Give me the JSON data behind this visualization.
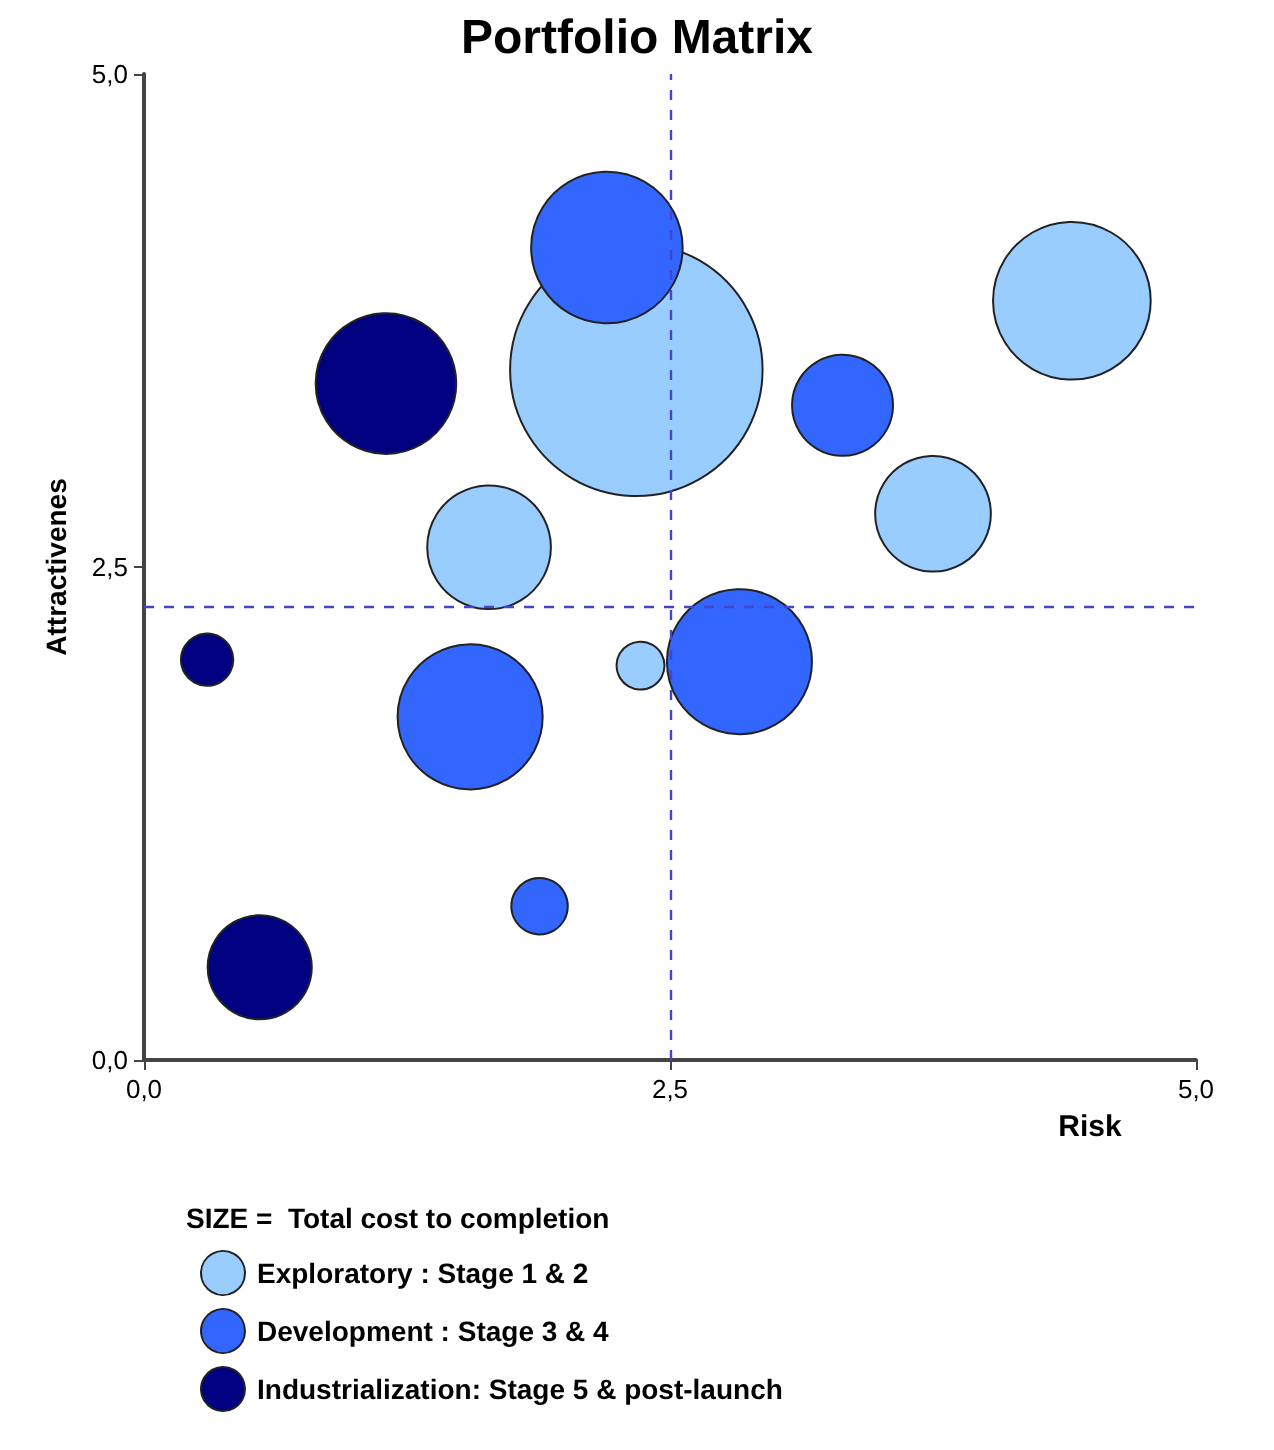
{
  "chart_data": {
    "type": "bubble",
    "title": "Portfolio Matrix",
    "xlabel": "Risk",
    "ylabel": "Attractivenes",
    "legend_title": "SIZE =  Total cost to completion",
    "xlim": [
      0,
      5
    ],
    "ylim": [
      0,
      5
    ],
    "xticks": [
      {
        "value": 0,
        "label": "0,0"
      },
      {
        "value": 2.5,
        "label": "2,5"
      },
      {
        "value": 5,
        "label": "5,0"
      }
    ],
    "yticks": [
      {
        "value": 0,
        "label": "0,0"
      },
      {
        "value": 2.5,
        "label": "2,5"
      },
      {
        "value": 5,
        "label": "5,0"
      }
    ],
    "grid": false,
    "legend": "bottom",
    "marker": "circle",
    "ref_lines": [
      {
        "axis": "y",
        "value": 2.3,
        "color": "#4444cc",
        "line_style": "dashed"
      },
      {
        "axis": "x",
        "value": 2.5,
        "color": "#4444cc",
        "line_style": "dashed"
      }
    ],
    "series": [
      {
        "name": "Exploratory : Stage 1 & 2",
        "color": "#99ccff",
        "x": [
          2.34,
          4.41,
          3.75,
          1.64,
          2.36
        ],
        "values": [
          3.5,
          3.85,
          2.77,
          2.6,
          2.0
        ],
        "sizes": [
          1,
          0.39,
          0.21,
          0.24,
          0.036
        ]
      },
      {
        "name": "Development : Stage 3 & 4",
        "color": "#3366ff",
        "x": [
          2.2,
          3.32,
          2.83,
          1.55,
          1.88
        ],
        "values": [
          4.12,
          3.32,
          2.02,
          1.74,
          0.78
        ],
        "sizes": [
          0.36,
          0.16,
          0.33,
          0.33,
          0.05
        ]
      },
      {
        "name": "Industrialization: Stage 5 & post-launch",
        "color": "#000080",
        "x": [
          1.15,
          0.3,
          0.55
        ],
        "values": [
          3.43,
          2.03,
          0.47
        ],
        "sizes": [
          0.31,
          0.043,
          0.17
        ]
      }
    ]
  }
}
